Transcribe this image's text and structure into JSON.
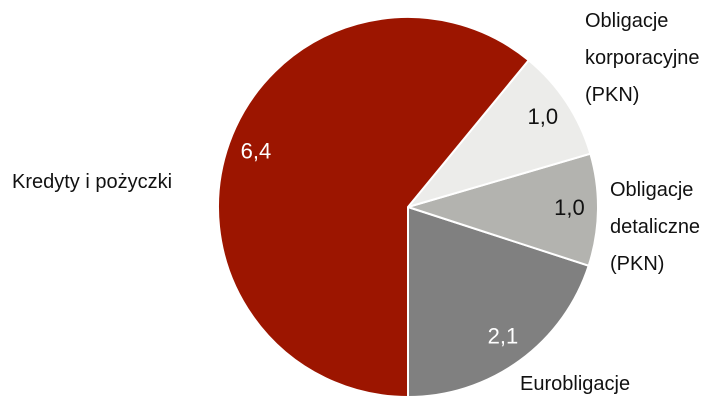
{
  "chart_data": {
    "type": "pie",
    "categories": [
      "Eurobligacje",
      "Obligacje detaliczne (PKN)",
      "Obligacje korporacyjne (PKN)",
      "Kredyty i pożyczki"
    ],
    "values": [
      2.1,
      1.0,
      1.0,
      6.4
    ],
    "value_labels": [
      "2,1",
      "1,0",
      "1,0",
      "6,4"
    ],
    "colors": [
      "#808080",
      "#b3b3af",
      "#ececea",
      "#9c1500"
    ]
  }
}
